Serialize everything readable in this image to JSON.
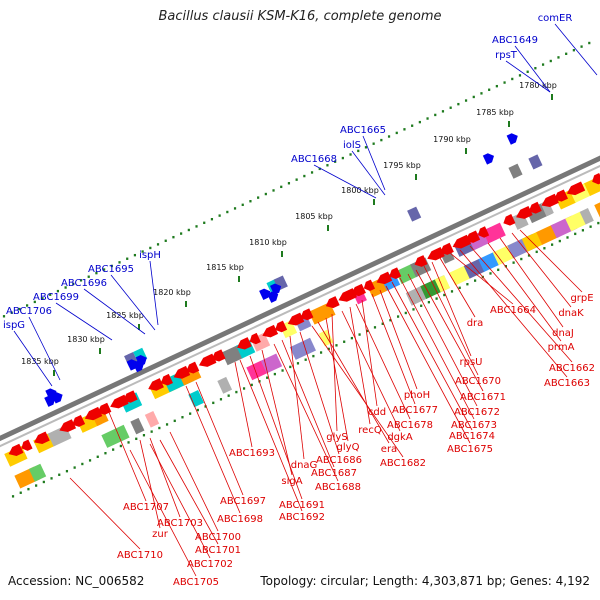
{
  "title": "Bacillus clausii KSM-K16, complete genome",
  "footer": {
    "accession": "Accession: NC_006582",
    "topology": "Topology: circular; Length: 4,303,871 bp; Genes: 4,192"
  },
  "colors": {
    "forward_label": "#0000cc",
    "reverse_label": "#dd0000",
    "backbone": "#777777",
    "tick": "#1e7a1e"
  },
  "kbp_ticks": [
    "1780 kbp",
    "1785 kbp",
    "1790 kbp",
    "1795 kbp",
    "1800 kbp",
    "1805 kbp",
    "1810 kbp",
    "1815 kbp",
    "1820 kbp",
    "1825 kbp",
    "1830 kbp",
    "1835 kbp"
  ],
  "forward_labels": [
    "comER",
    "ABC1649",
    "rpsT",
    "ABC1665",
    "iolS",
    "ABC1668",
    "ispH",
    "ABC1695",
    "ABC1696",
    "ABC1699",
    "ABC1706",
    "ispG"
  ],
  "reverse_labels": [
    "grpE",
    "dnaK",
    "dnaJ",
    "prmA",
    "ABC1662",
    "ABC1663",
    "ABC1664",
    "dra",
    "rpsU",
    "ABC1670",
    "ABC1671",
    "ABC1672",
    "ABC1673",
    "ABC1674",
    "ABC1675",
    "phoH",
    "ABC1677",
    "cdd",
    "ABC1678",
    "recQ",
    "dgkA",
    "glyS",
    "glyQ",
    "era",
    "ABC1682",
    "ABC1686",
    "dnaG",
    "ABC1687",
    "ABC1688",
    "sigA",
    "ABC1693",
    "ABC1691",
    "ABC1692",
    "ABC1697",
    "ABC1698",
    "ABC1707",
    "ABC1703",
    "ABC1700",
    "zur",
    "ABC1701",
    "ABC1702",
    "ABC1710",
    "ABC1705"
  ]
}
